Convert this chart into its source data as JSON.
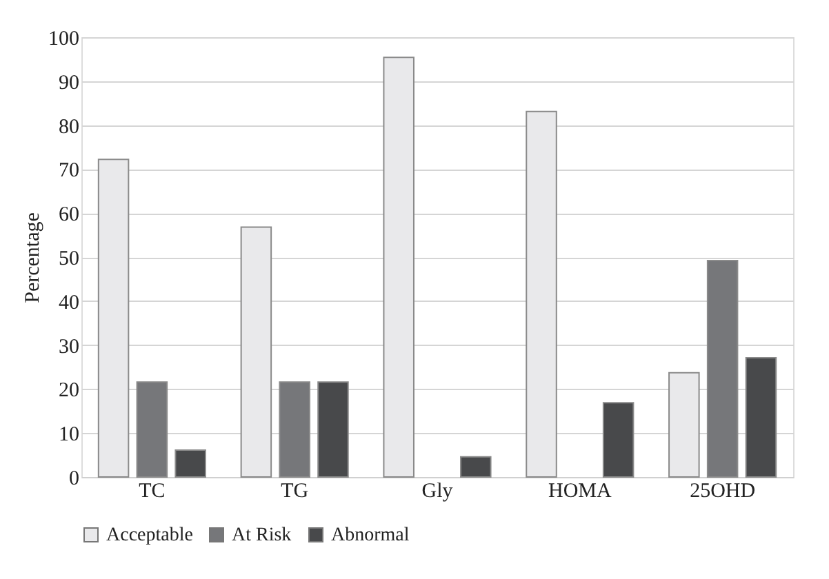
{
  "chart_data": {
    "type": "bar",
    "ylabel": "Percentage",
    "categories": [
      "TC",
      "TG",
      "Gly",
      "HOMA",
      "25OHD"
    ],
    "series": [
      {
        "name": "Acceptable",
        "color": "#e9e9eb",
        "values": [
          72.2,
          56.8,
          95.4,
          83.1,
          23.7
        ]
      },
      {
        "name": "At Risk",
        "color": "#76777a",
        "values": [
          21.6,
          21.6,
          null,
          null,
          49.2
        ]
      },
      {
        "name": "Abnormal",
        "color": "#48494b",
        "values": [
          6.1,
          21.6,
          4.6,
          16.9,
          27.1
        ]
      }
    ],
    "ylim": [
      0,
      100
    ],
    "yticks": [
      0,
      10,
      20,
      30,
      40,
      50,
      60,
      70,
      80,
      90,
      100
    ],
    "grid": "y",
    "legend": "bottom"
  }
}
